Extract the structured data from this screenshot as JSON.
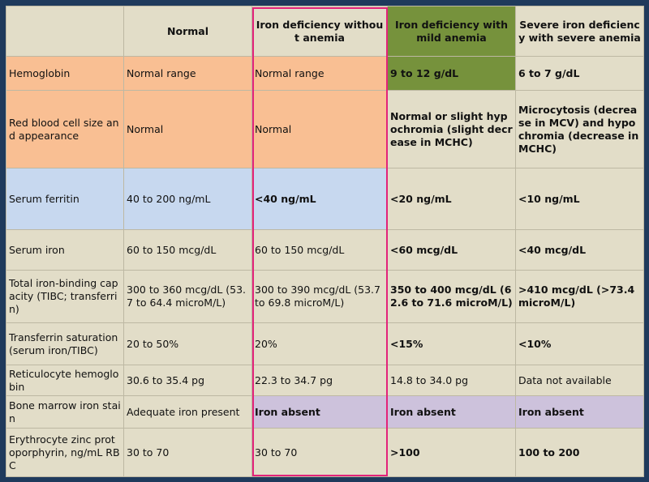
{
  "table": {
    "headers": [
      "",
      "Normal",
      "Iron deficiency without anemia",
      "Iron deficiency with mild anemia",
      "Severe iron deficiency with severe anemia"
    ],
    "rows": [
      {
        "label": "Hemoglobin",
        "cells": [
          "Normal range",
          "Normal range",
          "9 to 12 g/dL",
          "6 to 7 g/dL"
        ]
      },
      {
        "label": "Red blood cell size and appearance",
        "cells": [
          "Normal",
          "Normal",
          "Normal or slight hypochromia (slight decrease in MCHC)",
          "Microcytosis (decrease in MCV) and hypochromia (decrease in MCHC)"
        ]
      },
      {
        "label": "Serum ferritin",
        "cells": [
          "40 to 200 ng/mL",
          "<40 ng/mL",
          "<20 ng/mL",
          "<10 ng/mL"
        ]
      },
      {
        "label": "Serum iron",
        "cells": [
          "60 to 150 mcg/dL",
          "60 to 150 mcg/dL",
          "<60 mcg/dL",
          "<40 mcg/dL"
        ]
      },
      {
        "label": "Total iron-binding capacity (TIBC; transferrin)",
        "cells": [
          "300 to 360 mcg/dL (53.7 to 64.4 microM/L)",
          "300 to 390 mcg/dL (53.7 to 69.8 microM/L)",
          "350 to 400 mcg/dL (62.6 to 71.6 microM/L)",
          ">410 mcg/dL (>73.4 microM/L)"
        ]
      },
      {
        "label": "Transferrin saturation (serum iron/TIBC)",
        "cells": [
          "20 to 50%",
          "20%",
          "<15%",
          "<10%"
        ]
      },
      {
        "label": "Reticulocyte hemoglobin",
        "cells": [
          "30.6 to 35.4 pg",
          "22.3 to 34.7 pg",
          "14.8 to 34.0 pg",
          "Data not available"
        ]
      },
      {
        "label": "Bone marrow iron stain",
        "cells": [
          "Adequate iron present",
          "Iron absent",
          "Iron absent",
          "Iron absent"
        ]
      },
      {
        "label": "Erythrocyte zinc protoporphyrin, ng/mL RBC",
        "cells": [
          "30 to 70",
          "30 to 70",
          ">100",
          "100 to 200"
        ]
      }
    ]
  }
}
